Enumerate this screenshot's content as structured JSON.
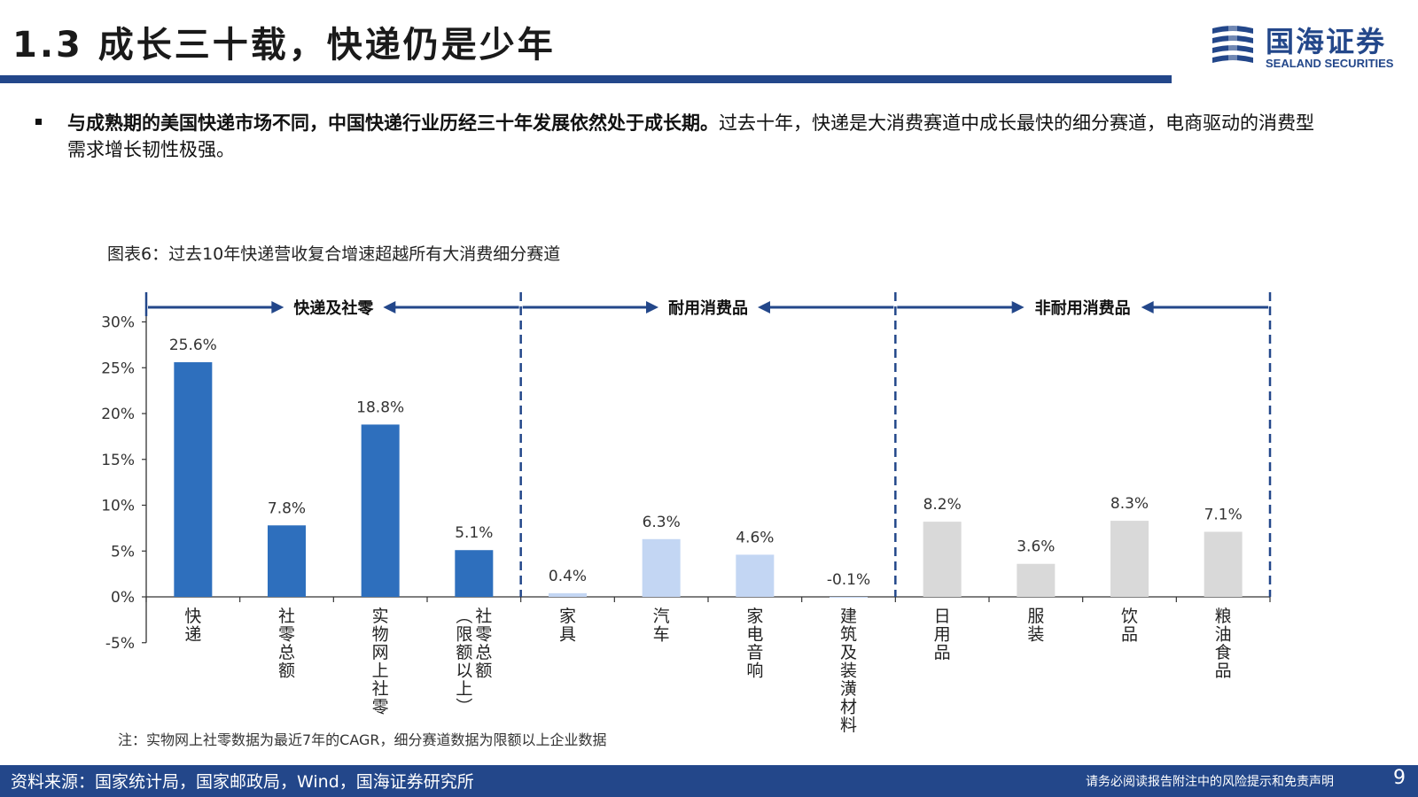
{
  "header": {
    "title": "1.3 成长三十载，快递仍是少年",
    "logo_cn": "国海证券",
    "logo_en": "SEALAND SECURITIES"
  },
  "bullet": {
    "bold_text": "与成熟期的美国快递市场不同，中国快递行业历经三十年发展依然处于成长期。",
    "normal_text": "过去十年，快递是大消费赛道中成长最快的细分赛道，电商驱动的消费型需求增长韧性极强。"
  },
  "chart_title": "图表6：过去10年快递营收复合增速超越所有大消费细分赛道",
  "note": "注：实物网上社零数据为最近7年的CAGR，细分赛道数据为限额以上企业数据",
  "footer": {
    "source": "资料来源：国家统计局，国家邮政局，Wind，国海证券研究所",
    "disclaimer": "请务必阅读报告附注中的风险提示和免责声明",
    "page": "9"
  },
  "colors": {
    "brand_blue": "#23478a",
    "bar_dark": "#2e6fbd",
    "bar_light": "#c3d6f3",
    "bar_gray": "#d9d9d9"
  },
  "chart_data": {
    "type": "bar",
    "title": "图表6：过去10年快递营收复合增速超越所有大消费细分赛道",
    "categories": [
      "快递",
      "社零总额",
      "实物网上社零",
      "社零总额（限额以上）",
      "家具",
      "汽车",
      "家电音响",
      "建筑及装潢材料",
      "日用品",
      "服装",
      "饮品",
      "粮油食品"
    ],
    "values": [
      25.6,
      7.8,
      18.8,
      5.1,
      0.4,
      6.3,
      4.6,
      -0.1,
      8.2,
      3.6,
      8.3,
      7.1
    ],
    "value_labels": [
      "25.6%",
      "7.8%",
      "18.8%",
      "5.1%",
      "0.4%",
      "6.3%",
      "4.6%",
      "-0.1%",
      "8.2%",
      "3.6%",
      "8.3%",
      "7.1%"
    ],
    "group_of_bar": [
      0,
      0,
      0,
      0,
      1,
      1,
      1,
      1,
      2,
      2,
      2,
      2
    ],
    "groups": [
      {
        "label": "快递及社零",
        "color": "#2e6fbd"
      },
      {
        "label": "耐用消费品",
        "color": "#c3d6f3"
      },
      {
        "label": "非耐用消费品",
        "color": "#d9d9d9"
      }
    ],
    "ylim": [
      -5,
      30
    ],
    "yticks": [
      -5,
      0,
      5,
      10,
      15,
      20,
      25,
      30
    ],
    "ytick_labels": [
      "-5%",
      "0%",
      "5%",
      "10%",
      "15%",
      "20%",
      "25%",
      "30%"
    ],
    "xlabel": "",
    "ylabel": "",
    "grid": false
  }
}
